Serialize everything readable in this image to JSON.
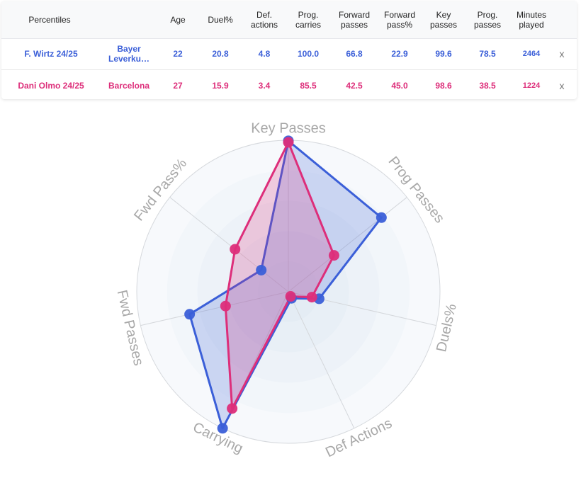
{
  "table": {
    "header": [
      "Percentiles",
      "Age",
      "Duel%",
      "Def.\nactions",
      "Prog.\ncarries",
      "Forward\npasses",
      "Forward\npass%",
      "Key\npasses",
      "Prog.\npasses",
      "Minutes\nplayed"
    ],
    "rows": [
      {
        "player": "F. Wirtz 24/25",
        "team": "Bayer\nLeverku…",
        "age": "22",
        "duel": "20.8",
        "def_actions": "4.8",
        "prog_carries": "100.0",
        "fwd_passes": "66.8",
        "fwd_pass_pct": "22.9",
        "key_passes": "99.6",
        "prog_passes": "78.5",
        "minutes": "2464",
        "remove": "x",
        "color": "#3b5fd8"
      },
      {
        "player": "Dani Olmo 24/25",
        "team": "Barcelona",
        "age": "27",
        "duel": "15.9",
        "def_actions": "3.4",
        "prog_carries": "85.5",
        "fwd_passes": "42.5",
        "fwd_pass_pct": "45.0",
        "key_passes": "98.6",
        "prog_passes": "38.5",
        "minutes": "1224",
        "remove": "x",
        "color": "#dd2e7a"
      }
    ]
  },
  "chart_data": {
    "type": "radar",
    "axes": [
      "Key Passes",
      "Prog Passes",
      "Duels%",
      "Def Actions",
      "Carrying",
      "Fwd Passes",
      "Fwd Pass%"
    ],
    "range": [
      0,
      100
    ],
    "series": [
      {
        "name": "F. Wirtz 24/25",
        "color": "#3b5fd8",
        "values": [
          99.6,
          78.5,
          20.8,
          4.8,
          100.0,
          66.8,
          22.9
        ]
      },
      {
        "name": "Dani Olmo 24/25",
        "color": "#dd2e7a",
        "values": [
          98.6,
          38.5,
          15.9,
          3.4,
          85.5,
          42.5,
          45.0
        ]
      }
    ]
  }
}
